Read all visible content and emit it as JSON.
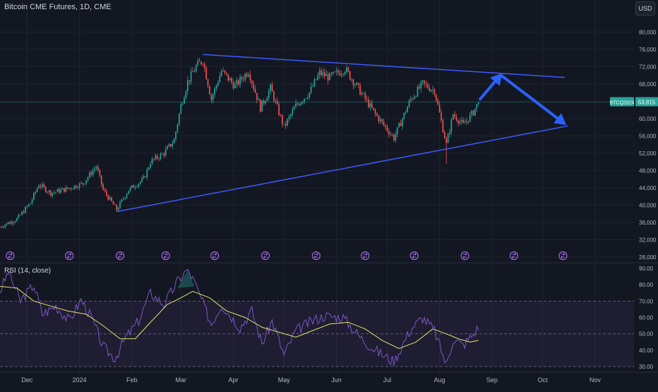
{
  "header": {
    "symbol_title": "Bitcoin CME Futures, 1D, CME",
    "currency": "USD"
  },
  "rsi_panel": {
    "title": "RSI (14, close)",
    "ylim": [
      30,
      90
    ],
    "ticks": [
      "90.00",
      "80.00",
      "70.00",
      "60.00",
      "50.00",
      "40.00",
      "30.00"
    ],
    "tick_values": [
      90,
      80,
      70,
      60,
      50,
      40,
      30
    ],
    "band": [
      30,
      70
    ]
  },
  "chart_data": {
    "type": "candlestick",
    "y_scale": "linear",
    "ylim": [
      28000,
      82000
    ],
    "y_ticks": [
      "80,000",
      "76,000",
      "72,000",
      "68,000",
      "64,000",
      "60,000",
      "56,000",
      "52,000",
      "48,000",
      "44,000",
      "40,000",
      "36,000",
      "32,000",
      "28,000"
    ],
    "y_tick_values": [
      80000,
      76000,
      72000,
      68000,
      64000,
      60000,
      56000,
      52000,
      48000,
      44000,
      40000,
      36000,
      32000,
      28000
    ],
    "x_start": "2023-11-15",
    "x_end": "2024-11-24",
    "x_ticks": [
      {
        "label": "Dec",
        "date": "2023-12-01"
      },
      {
        "label": "2024",
        "date": "2024-01-01"
      },
      {
        "label": "Feb",
        "date": "2024-02-01"
      },
      {
        "label": "Mar",
        "date": "2024-03-01"
      },
      {
        "label": "Apr",
        "date": "2024-04-01"
      },
      {
        "label": "May",
        "date": "2024-05-01"
      },
      {
        "label": "Jun",
        "date": "2024-06-01"
      },
      {
        "label": "Jul",
        "date": "2024-07-01"
      },
      {
        "label": "Aug",
        "date": "2024-08-01"
      },
      {
        "label": "Sep",
        "date": "2024-09-01"
      },
      {
        "label": "Oct",
        "date": "2024-10-01"
      },
      {
        "label": "Nov",
        "date": "2024-11-01"
      }
    ],
    "price_label": {
      "symbol": "BTCQ2024",
      "value": "63,815",
      "price": 63815
    },
    "price_path": [
      [
        "2023-11-15",
        35000
      ],
      [
        "2023-11-25",
        36800
      ],
      [
        "2023-12-03",
        40500
      ],
      [
        "2023-12-08",
        44800
      ],
      [
        "2023-12-15",
        42800
      ],
      [
        "2023-12-25",
        43800
      ],
      [
        "2024-01-03",
        45000
      ],
      [
        "2024-01-08",
        47500
      ],
      [
        "2024-01-11",
        49000
      ],
      [
        "2024-01-15",
        43500
      ],
      [
        "2024-01-23",
        39000
      ],
      [
        "2024-01-30",
        43500
      ],
      [
        "2024-02-08",
        46000
      ],
      [
        "2024-02-12",
        50000
      ],
      [
        "2024-02-20",
        52000
      ],
      [
        "2024-02-26",
        55000
      ],
      [
        "2024-03-01",
        63000
      ],
      [
        "2024-03-05",
        68500
      ],
      [
        "2024-03-10",
        72000
      ],
      [
        "2024-03-14",
        73500
      ],
      [
        "2024-03-19",
        64500
      ],
      [
        "2024-03-25",
        71000
      ],
      [
        "2024-04-02",
        67500
      ],
      [
        "2024-04-10",
        71000
      ],
      [
        "2024-04-17",
        62500
      ],
      [
        "2024-04-23",
        67000
      ],
      [
        "2024-05-01",
        58000
      ],
      [
        "2024-05-08",
        63000
      ],
      [
        "2024-05-16",
        66000
      ],
      [
        "2024-05-22",
        70500
      ],
      [
        "2024-05-28",
        69500
      ],
      [
        "2024-06-06",
        71500
      ],
      [
        "2024-06-13",
        67500
      ],
      [
        "2024-06-24",
        61000
      ],
      [
        "2024-07-05",
        55500
      ],
      [
        "2024-07-15",
        64500
      ],
      [
        "2024-07-22",
        68000
      ],
      [
        "2024-07-29",
        66500
      ],
      [
        "2024-08-05",
        54000
      ],
      [
        "2024-08-09",
        61000
      ],
      [
        "2024-08-15",
        58500
      ],
      [
        "2024-08-21",
        61500
      ],
      [
        "2024-08-24",
        63815
      ]
    ],
    "lower_wicks": [
      [
        "2024-08-05",
        49500
      ]
    ],
    "trendlines": [
      {
        "name": "upper",
        "from": [
          "2024-03-14",
          74800
        ],
        "to": [
          "2024-10-14",
          69500
        ]
      },
      {
        "name": "lower",
        "from": [
          "2024-01-23",
          38500
        ],
        "to": [
          "2024-10-16",
          58300
        ]
      }
    ],
    "arrows": [
      {
        "from": [
          "2024-08-25",
          64500
        ],
        "to": [
          "2024-09-07",
          70500
        ]
      },
      {
        "from": [
          "2024-09-07",
          69800
        ],
        "to": [
          "2024-10-15",
          58500
        ]
      }
    ],
    "event_marker_dates": [
      "2023-11-21",
      "2023-12-26",
      "2024-01-25",
      "2024-02-21",
      "2024-03-21",
      "2024-04-20",
      "2024-05-20",
      "2024-06-18",
      "2024-07-17",
      "2024-08-16",
      "2024-09-14",
      "2024-10-13"
    ],
    "rsi_path": [
      [
        "2023-11-15",
        76
      ],
      [
        "2023-11-20",
        88
      ],
      [
        "2023-11-27",
        70
      ],
      [
        "2023-12-05",
        80
      ],
      [
        "2023-12-10",
        62
      ],
      [
        "2023-12-18",
        67
      ],
      [
        "2023-12-26",
        58
      ],
      [
        "2024-01-02",
        71
      ],
      [
        "2024-01-08",
        60
      ],
      [
        "2024-01-15",
        42
      ],
      [
        "2024-01-22",
        35
      ],
      [
        "2024-01-28",
        47
      ],
      [
        "2024-02-05",
        58
      ],
      [
        "2024-02-12",
        75
      ],
      [
        "2024-02-20",
        68
      ],
      [
        "2024-02-28",
        82
      ],
      [
        "2024-03-05",
        90
      ],
      [
        "2024-03-10",
        79
      ],
      [
        "2024-03-19",
        56
      ],
      [
        "2024-03-25",
        68
      ],
      [
        "2024-04-05",
        54
      ],
      [
        "2024-04-12",
        64
      ],
      [
        "2024-04-18",
        44
      ],
      [
        "2024-04-24",
        58
      ],
      [
        "2024-05-01",
        37
      ],
      [
        "2024-05-08",
        52
      ],
      [
        "2024-05-18",
        58
      ],
      [
        "2024-05-25",
        61
      ],
      [
        "2024-06-05",
        60
      ],
      [
        "2024-06-15",
        48
      ],
      [
        "2024-06-24",
        40
      ],
      [
        "2024-07-05",
        33
      ],
      [
        "2024-07-15",
        53
      ],
      [
        "2024-07-22",
        60
      ],
      [
        "2024-07-29",
        52
      ],
      [
        "2024-08-05",
        31
      ],
      [
        "2024-08-09",
        47
      ],
      [
        "2024-08-15",
        43
      ],
      [
        "2024-08-21",
        50
      ],
      [
        "2024-08-24",
        54
      ]
    ],
    "rsi_ma_path": [
      [
        "2023-11-15",
        79
      ],
      [
        "2023-11-25",
        78
      ],
      [
        "2023-12-05",
        70
      ],
      [
        "2023-12-15",
        67
      ],
      [
        "2023-12-25",
        64
      ],
      [
        "2024-01-05",
        62
      ],
      [
        "2024-01-15",
        55
      ],
      [
        "2024-01-25",
        47
      ],
      [
        "2024-02-03",
        47
      ],
      [
        "2024-02-12",
        57
      ],
      [
        "2024-02-22",
        68
      ],
      [
        "2024-03-01",
        72
      ],
      [
        "2024-03-08",
        76
      ],
      [
        "2024-03-18",
        72
      ],
      [
        "2024-03-28",
        64
      ],
      [
        "2024-04-08",
        60
      ],
      [
        "2024-04-18",
        54
      ],
      [
        "2024-04-28",
        51
      ],
      [
        "2024-05-08",
        48
      ],
      [
        "2024-05-18",
        52
      ],
      [
        "2024-05-28",
        56
      ],
      [
        "2024-06-08",
        57
      ],
      [
        "2024-06-18",
        53
      ],
      [
        "2024-06-28",
        46
      ],
      [
        "2024-07-08",
        41
      ],
      [
        "2024-07-18",
        45
      ],
      [
        "2024-07-28",
        53
      ],
      [
        "2024-08-05",
        50
      ],
      [
        "2024-08-12",
        47
      ],
      [
        "2024-08-19",
        45
      ],
      [
        "2024-08-24",
        46
      ]
    ]
  }
}
